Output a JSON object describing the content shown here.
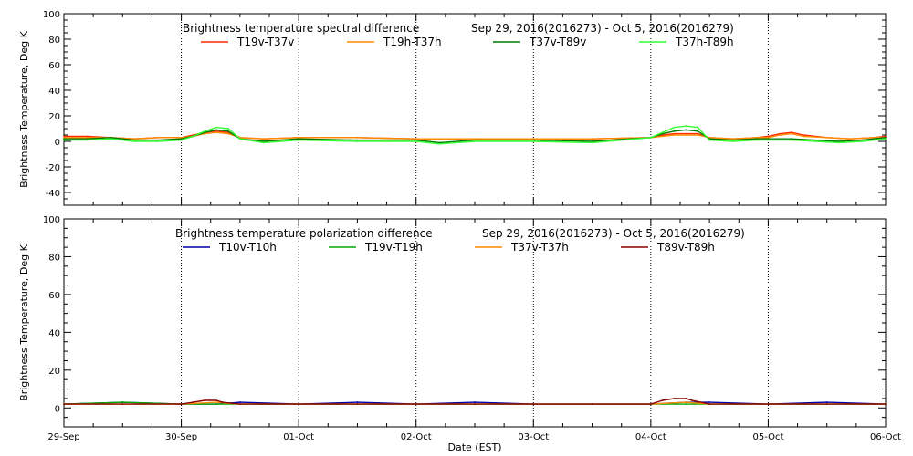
{
  "chart_data": [
    {
      "type": "line",
      "title": "Brightness temperature spectral difference",
      "date_range": "Sep 29, 2016(2016273) - Oct  5, 2016(2016279)",
      "ylabel": "Brightness Temperature, Deg K",
      "xlabel": "",
      "x_unit": "days since 29-Sep",
      "xlim": [
        0,
        7
      ],
      "ylim": [
        -50,
        100
      ],
      "yticks": [
        -40,
        -20,
        0,
        20,
        40,
        60,
        80,
        100
      ],
      "ytick_labels": [
        "-40",
        "-20",
        "0",
        "20",
        "40",
        "60",
        "80",
        "100"
      ],
      "series": [
        {
          "name": "T19v-T37v",
          "color": "#ff2a00",
          "x": [
            0,
            0.2,
            0.4,
            0.6,
            0.8,
            1.0,
            1.1,
            1.2,
            1.3,
            1.4,
            1.5,
            1.7,
            2.0,
            2.5,
            3.0,
            3.5,
            4.0,
            4.5,
            5.0,
            5.1,
            5.2,
            5.3,
            5.4,
            5.5,
            5.7,
            5.9,
            6.0,
            6.1,
            6.2,
            6.3,
            6.5,
            6.7,
            6.9,
            7.0
          ],
          "values": [
            4,
            4,
            3,
            2,
            3,
            3,
            5,
            7,
            8,
            7,
            3,
            2,
            3,
            3,
            2,
            2,
            2,
            2,
            3,
            5,
            6,
            6,
            6,
            3,
            2,
            3,
            4,
            6,
            7,
            5,
            3,
            2,
            3,
            4
          ]
        },
        {
          "name": "T19h-T37h",
          "color": "#ff8c00",
          "x": [
            0,
            0.2,
            0.4,
            0.6,
            0.8,
            1.0,
            1.1,
            1.2,
            1.3,
            1.4,
            1.5,
            1.7,
            2.0,
            2.5,
            3.0,
            3.5,
            4.0,
            4.5,
            5.0,
            5.1,
            5.2,
            5.3,
            5.4,
            5.5,
            5.7,
            5.9,
            6.0,
            6.1,
            6.2,
            6.3,
            6.5,
            6.7,
            6.9,
            7.0
          ],
          "values": [
            3,
            3,
            3,
            2,
            3,
            3,
            4,
            6,
            7,
            6,
            3,
            2,
            3,
            3,
            2,
            2,
            2,
            2,
            3,
            4,
            5,
            5,
            5,
            3,
            2,
            3,
            3,
            5,
            6,
            4,
            3,
            2,
            3,
            3
          ]
        },
        {
          "name": "T37v-T89v",
          "color": "#007a00",
          "x": [
            0,
            0.2,
            0.4,
            0.6,
            0.8,
            1.0,
            1.1,
            1.2,
            1.3,
            1.4,
            1.5,
            1.7,
            2.0,
            2.5,
            3.0,
            3.2,
            3.5,
            4.0,
            4.5,
            5.0,
            5.1,
            5.2,
            5.3,
            5.4,
            5.5,
            5.7,
            5.9,
            6.0,
            6.2,
            6.4,
            6.6,
            6.8,
            7.0
          ],
          "values": [
            2,
            2,
            3,
            1,
            1,
            2,
            4,
            7,
            9,
            8,
            2,
            0,
            2,
            1,
            1,
            -1,
            1,
            1,
            0,
            3,
            6,
            8,
            9,
            8,
            2,
            1,
            2,
            2,
            2,
            1,
            0,
            1,
            3
          ]
        },
        {
          "name": "T37h-T89h",
          "color": "#33ff33",
          "x": [
            0,
            0.2,
            0.4,
            0.6,
            0.8,
            1.0,
            1.1,
            1.2,
            1.3,
            1.4,
            1.5,
            1.7,
            2.0,
            2.5,
            3.0,
            3.2,
            3.5,
            4.0,
            4.5,
            5.0,
            5.1,
            5.2,
            5.3,
            5.4,
            5.5,
            5.7,
            5.9,
            6.0,
            6.2,
            6.4,
            6.6,
            6.8,
            7.0
          ],
          "values": [
            1,
            1,
            2,
            0,
            0,
            1,
            4,
            8,
            11,
            10,
            2,
            -1,
            1,
            0,
            0,
            -2,
            0,
            0,
            -1,
            3,
            7,
            11,
            12,
            11,
            1,
            0,
            1,
            1,
            1,
            0,
            -1,
            0,
            2
          ]
        }
      ]
    },
    {
      "type": "line",
      "title": "Brightness temperature polarization difference",
      "date_range": "Sep 29, 2016(2016273) - Oct  5, 2016(2016279)",
      "ylabel": "Brightness Temperature, Deg K",
      "xlabel": "Date (EST)",
      "x_unit": "days since 29-Sep",
      "xlim": [
        0,
        7
      ],
      "ylim": [
        -10,
        100
      ],
      "yticks": [
        0,
        20,
        40,
        60,
        80,
        100
      ],
      "ytick_labels": [
        "0",
        "20",
        "40",
        "60",
        "80",
        "100"
      ],
      "categories": [
        "29-Sep",
        "30-Sep",
        "01-Oct",
        "02-Oct",
        "03-Oct",
        "04-Oct",
        "05-Oct",
        "06-Oct"
      ],
      "series": [
        {
          "name": "T10v-T10h",
          "color": "#0000aa",
          "x": [
            0,
            0.5,
            1.0,
            1.3,
            1.5,
            2.0,
            2.5,
            3.0,
            3.5,
            4.0,
            4.5,
            5.0,
            5.3,
            5.5,
            6.0,
            6.5,
            7.0
          ],
          "values": [
            2,
            3,
            2,
            2,
            3,
            2,
            3,
            2,
            3,
            2,
            2,
            2,
            3,
            3,
            2,
            3,
            2
          ]
        },
        {
          "name": "T19v-T19h",
          "color": "#00aa00",
          "x": [
            0,
            0.5,
            1.0,
            1.3,
            1.5,
            2.0,
            2.5,
            3.0,
            3.5,
            4.0,
            4.5,
            5.0,
            5.3,
            5.5,
            6.0,
            6.5,
            7.0
          ],
          "values": [
            2,
            3,
            2,
            2,
            2,
            2,
            2,
            2,
            2,
            2,
            2,
            2,
            2,
            2,
            2,
            2,
            2
          ]
        },
        {
          "name": "T37v-T37h",
          "color": "#ff8c00",
          "x": [
            0,
            0.5,
            1.0,
            1.3,
            1.5,
            2.0,
            2.5,
            3.0,
            3.5,
            4.0,
            4.5,
            5.0,
            5.3,
            5.5,
            6.0,
            6.5,
            7.0
          ],
          "values": [
            2,
            2,
            2,
            3,
            2,
            2,
            2,
            2,
            2,
            2,
            2,
            2,
            3,
            2,
            2,
            2,
            2
          ]
        },
        {
          "name": "T89v-T89h",
          "color": "#8b0000",
          "x": [
            0,
            0.5,
            1.0,
            1.1,
            1.2,
            1.3,
            1.35,
            1.5,
            2.0,
            2.5,
            3.0,
            3.5,
            4.0,
            4.5,
            5.0,
            5.1,
            5.2,
            5.3,
            5.35,
            5.5,
            6.0,
            6.5,
            7.0
          ],
          "values": [
            2,
            2,
            2,
            3,
            4,
            4,
            3,
            2,
            2,
            2,
            2,
            2,
            2,
            2,
            2,
            4,
            5,
            5,
            4,
            2,
            2,
            2,
            2
          ]
        }
      ]
    }
  ]
}
